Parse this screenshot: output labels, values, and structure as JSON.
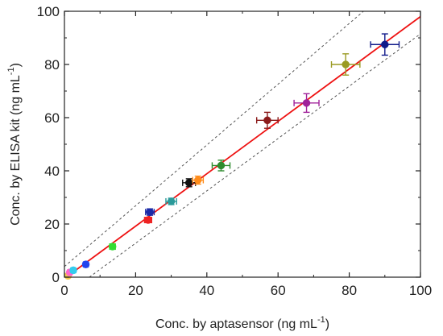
{
  "chart_data": {
    "type": "scatter",
    "xlabel": "Conc. by aptasensor (ng mL",
    "xlabel_sup": "-1",
    "xlabel_end": ")",
    "ylabel": "Conc. by ELISA kit (ng mL",
    "ylabel_sup": "-1",
    "ylabel_end": ")",
    "xlim": [
      0,
      100
    ],
    "ylim": [
      0,
      100
    ],
    "x_ticks": [
      0,
      20,
      40,
      60,
      80,
      100
    ],
    "y_ticks": [
      0,
      20,
      40,
      60,
      80,
      100
    ],
    "grid": false,
    "points": [
      {
        "x": 1.0,
        "y": 0.5,
        "xerr": 0.5,
        "yerr": 0.6,
        "color": "#f2c94c"
      },
      {
        "x": 1.5,
        "y": 1.8,
        "xerr": 0.6,
        "yerr": 0.6,
        "color": "#ff66cc"
      },
      {
        "x": 2.5,
        "y": 2.6,
        "xerr": 0.6,
        "yerr": 0.8,
        "color": "#33ccee"
      },
      {
        "x": 6.0,
        "y": 4.8,
        "xerr": 0.6,
        "yerr": 0.8,
        "color": "#2244ee"
      },
      {
        "x": 13.5,
        "y": 11.5,
        "xerr": 0.8,
        "yerr": 1.0,
        "color": "#33dd33"
      },
      {
        "x": 23.5,
        "y": 21.5,
        "xerr": 1.0,
        "yerr": 1.0,
        "color": "#ee2222"
      },
      {
        "x": 24.0,
        "y": 24.5,
        "xerr": 1.2,
        "yerr": 1.2,
        "color": "#1a2aa8"
      },
      {
        "x": 30.0,
        "y": 28.5,
        "xerr": 1.5,
        "yerr": 1.2,
        "color": "#2a9a9a"
      },
      {
        "x": 35.0,
        "y": 35.5,
        "xerr": 1.8,
        "yerr": 1.5,
        "color": "#111111"
      },
      {
        "x": 37.5,
        "y": 36.5,
        "xerr": 1.5,
        "yerr": 1.5,
        "color": "#ff8c1a"
      },
      {
        "x": 44.0,
        "y": 42.0,
        "xerr": 2.5,
        "yerr": 2.0,
        "color": "#2e8b2e"
      },
      {
        "x": 57.0,
        "y": 59.0,
        "xerr": 3.0,
        "yerr": 3.0,
        "color": "#8b1a1a"
      },
      {
        "x": 68.0,
        "y": 65.5,
        "xerr": 3.5,
        "yerr": 3.5,
        "color": "#a0229a"
      },
      {
        "x": 79.0,
        "y": 80.0,
        "xerr": 4.0,
        "yerr": 4.0,
        "color": "#9a9a22"
      },
      {
        "x": 90.0,
        "y": 87.5,
        "xerr": 4.0,
        "yerr": 4.0,
        "color": "#101a8a"
      }
    ],
    "fit_line": {
      "x": [
        0,
        100
      ],
      "y": [
        -0.5,
        98
      ],
      "color": "#ee1111"
    },
    "confidence_upper": {
      "x": [
        0,
        84
      ],
      "y": [
        4,
        100
      ],
      "color": "#555555"
    },
    "confidence_lower": {
      "x": [
        7,
        100
      ],
      "y": [
        0,
        91.5
      ],
      "color": "#555555"
    }
  }
}
